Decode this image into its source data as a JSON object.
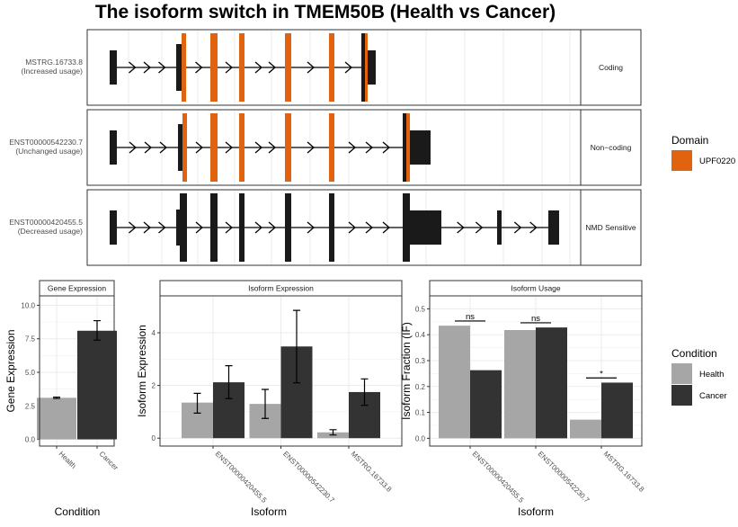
{
  "title": "The isoform switch in TMEM50B (Health vs Cancer)",
  "colors": {
    "domain": "#E2630F",
    "exon": "#1a1a1a",
    "health": "#a6a6a6",
    "cancer": "#333333",
    "grid": "#ebebeb",
    "strip_bg": "#ffffff"
  },
  "transcripts": [
    {
      "id": "MSTRG.16733.8",
      "usage": "(Increased usage)",
      "category": "Coding",
      "exons": [
        [
          122,
          130,
          "nc"
        ],
        [
          196,
          202,
          "nc"
        ],
        [
          202,
          207,
          "d"
        ],
        [
          234,
          242,
          "d"
        ],
        [
          266,
          272,
          "d"
        ],
        [
          317,
          324,
          "d"
        ],
        [
          366,
          372,
          "d"
        ],
        [
          402,
          406,
          "nc"
        ],
        [
          406,
          409,
          "d"
        ],
        [
          409,
          418,
          "nc"
        ]
      ]
    },
    {
      "id": "ENST00000542230.7",
      "usage": "(Unchanged usage)",
      "category": "Non−coding",
      "exons": [
        [
          122,
          130,
          "nc"
        ],
        [
          198,
          203,
          "nc"
        ],
        [
          203,
          208,
          "d"
        ],
        [
          234,
          242,
          "d"
        ],
        [
          266,
          272,
          "d"
        ],
        [
          317,
          324,
          "d"
        ],
        [
          366,
          372,
          "d"
        ],
        [
          448,
          452,
          "nc"
        ],
        [
          452,
          456,
          "d"
        ],
        [
          456,
          479,
          "nc"
        ]
      ]
    },
    {
      "id": "ENST00000420455.5",
      "usage": "(Decreased usage)",
      "category": "NMD Sensitive",
      "exons": [
        [
          122,
          130,
          "nc"
        ],
        [
          196,
          200,
          "nc"
        ],
        [
          200,
          208,
          "nc"
        ],
        [
          234,
          242,
          "nc"
        ],
        [
          266,
          272,
          "nc"
        ],
        [
          317,
          324,
          "nc"
        ],
        [
          366,
          372,
          "nc"
        ],
        [
          448,
          456,
          "nc"
        ],
        [
          456,
          491,
          "nc"
        ],
        [
          553,
          558,
          "nc"
        ],
        [
          610,
          622,
          "nc"
        ]
      ]
    }
  ],
  "domain_legend": {
    "title": "Domain",
    "items": [
      {
        "label": "UPF0220"
      }
    ]
  },
  "condition_legend": {
    "title": "Condition",
    "items": [
      {
        "label": "Health"
      },
      {
        "label": "Cancer"
      }
    ]
  },
  "chart_data": [
    {
      "type": "bar",
      "strip": "Gene Expression",
      "xlabel": "Condition",
      "ylabel": "Gene Expression",
      "categories": [
        "Health",
        "Cancer"
      ],
      "values": [
        3.1,
        8.1
      ],
      "errors": [
        [
          3.05,
          3.15
        ],
        [
          7.4,
          8.85
        ]
      ],
      "ylim": [
        -0.5,
        10.7
      ],
      "yticks": [
        0.0,
        2.5,
        5.0,
        7.5,
        10.0
      ],
      "ytick_labels": [
        "0.0",
        "2.5",
        "5.0",
        "7.5",
        "10.0"
      ]
    },
    {
      "type": "bar",
      "strip": "Isoform Expression",
      "xlabel": "Isoform",
      "ylabel": "Isoform Expression",
      "categories": [
        "ENST00000420455.5",
        "ENST00000542230.7",
        "MSTRG.16733.8"
      ],
      "series": [
        {
          "name": "Health",
          "values": [
            1.35,
            1.3,
            0.22
          ],
          "errors": [
            [
              0.95,
              1.7
            ],
            [
              0.75,
              1.85
            ],
            [
              0.12,
              0.32
            ]
          ]
        },
        {
          "name": "Cancer",
          "values": [
            2.12,
            3.48,
            1.75
          ],
          "errors": [
            [
              1.5,
              2.75
            ],
            [
              2.1,
              4.85
            ],
            [
              1.25,
              2.25
            ]
          ]
        }
      ],
      "ylim": [
        -0.3,
        5.4
      ],
      "yticks": [
        0,
        2,
        4
      ],
      "ytick_labels": [
        "0",
        "2",
        "4"
      ]
    },
    {
      "type": "bar",
      "strip": "Isoform Usage",
      "xlabel": "Isoform",
      "ylabel": "Isoform Fraction (IF)",
      "categories": [
        "ENST00000420455.5",
        "ENST00000542230.7",
        "MSTRG.16733.8"
      ],
      "series": [
        {
          "name": "Health",
          "values": [
            0.435,
            0.418,
            0.072
          ]
        },
        {
          "name": "Cancer",
          "values": [
            0.263,
            0.428,
            0.215
          ]
        }
      ],
      "significance": [
        "ns",
        "ns",
        "*"
      ],
      "ylim": [
        -0.03,
        0.55
      ],
      "yticks": [
        0.0,
        0.1,
        0.2,
        0.3,
        0.4,
        0.5
      ],
      "ytick_labels": [
        "0.0",
        "0.1",
        "0.2",
        "0.3",
        "0.4",
        "0.5"
      ]
    }
  ]
}
